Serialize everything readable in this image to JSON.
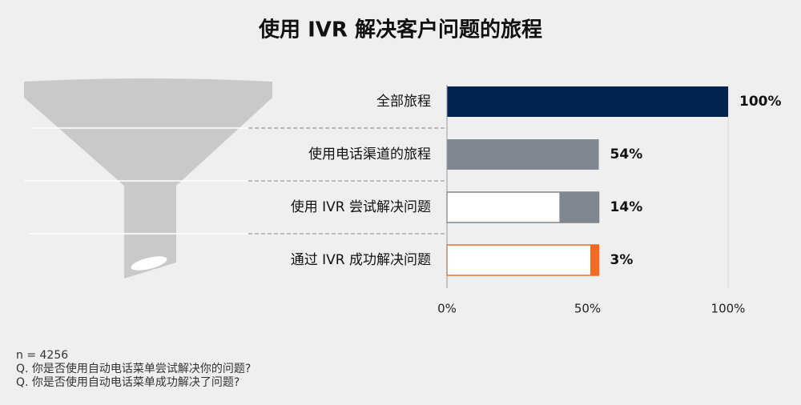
{
  "chart_data": {
    "type": "funnel-bar",
    "title": "使用 IVR 解决客户问题的旅程",
    "categories": [
      "全部旅程",
      "使用电话渠道的旅程",
      "使用 IVR 尝试解决问题",
      "通过 IVR 成功解决问题"
    ],
    "values": [
      100,
      54,
      14,
      3
    ],
    "value_labels": [
      "100%",
      "54%",
      "14%",
      "3%"
    ],
    "colors": [
      "#012350",
      "#7f8790",
      "#7f8790",
      "#f26a21"
    ],
    "xlim": [
      0,
      100
    ],
    "xticks": [
      {
        "value": 0,
        "label": "0%"
      },
      {
        "value": 50,
        "label": "50%"
      },
      {
        "value": 100,
        "label": "100%"
      }
    ],
    "notes": [
      "n = 4256",
      "Q. 你是否使用自动电话菜单尝试解决你的问题?",
      "Q. 你是否使用自动电话菜单成功解决了问题?"
    ]
  }
}
